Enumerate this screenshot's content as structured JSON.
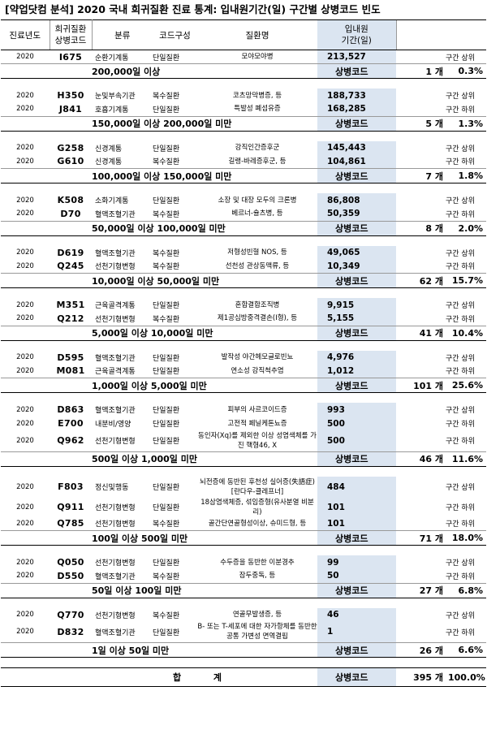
{
  "title": "[약업닷컴 분석] 2020 국내 희귀질환 진료 통계: 입내원기간(일) 구간별 상병코드 빈도",
  "header": {
    "year": "진료년도",
    "code_line1": "희귀질환",
    "code_line2": "상병코드",
    "category": "분류",
    "composition": "코드구성",
    "disease": "질환명",
    "days_line1": "입내원",
    "days_line2": "기간(일)"
  },
  "groups": [
    {
      "rows": [
        {
          "year": "2020",
          "code": "I675",
          "category": "순환기계통",
          "composition": "단일질환",
          "disease": "모야모야병",
          "days": "213,527",
          "position": "구간 상위"
        }
      ],
      "summary": {
        "range": "200,000일 이상",
        "label": "상병코드",
        "count": "1 개",
        "pct": "0.3%"
      }
    },
    {
      "rows": [
        {
          "year": "2020",
          "code": "H350",
          "category": "눈및부속기관",
          "composition": "복수질환",
          "disease": "코츠망막병증, 등",
          "days": "188,733",
          "position": "구간 상위"
        },
        {
          "year": "2020",
          "code": "J841",
          "category": "호흡기계통",
          "composition": "단일질환",
          "disease": "특발성 폐섬유증",
          "days": "168,285",
          "position": "구간 하위"
        }
      ],
      "summary": {
        "range": "150,000일 이상 200,000일 미만",
        "label": "상병코드",
        "count": "5 개",
        "pct": "1.3%"
      }
    },
    {
      "rows": [
        {
          "year": "2020",
          "code": "G258",
          "category": "신경계통",
          "composition": "단일질환",
          "disease": "강직인간증후군",
          "days": "145,443",
          "position": "구간 상위"
        },
        {
          "year": "2020",
          "code": "G610",
          "category": "신경계통",
          "composition": "복수질환",
          "disease": "길랭-바레증후군, 등",
          "days": "104,861",
          "position": "구간 하위"
        }
      ],
      "summary": {
        "range": "100,000일 이상 150,000일 미만",
        "label": "상병코드",
        "count": "7 개",
        "pct": "1.8%"
      }
    },
    {
      "rows": [
        {
          "year": "2020",
          "code": "K508",
          "category": "소화기계통",
          "composition": "단일질환",
          "disease": "소장 및 대장 모두의 크론병",
          "days": "86,808",
          "position": "구간 상위"
        },
        {
          "year": "2020",
          "code": "D70",
          "category": "혈액조혈기관",
          "composition": "복수질환",
          "disease": "베르너-슐츠병, 등",
          "days": "50,359",
          "position": "구간 하위"
        }
      ],
      "summary": {
        "range": "50,000일 이상 100,000일 미만",
        "label": "상병코드",
        "count": "8 개",
        "pct": "2.0%"
      }
    },
    {
      "rows": [
        {
          "year": "2020",
          "code": "D619",
          "category": "혈액조혈기관",
          "composition": "복수질환",
          "disease": "저형성빈혈 NOS, 등",
          "days": "49,065",
          "position": "구간 상위"
        },
        {
          "year": "2020",
          "code": "Q245",
          "category": "선천기형변형",
          "composition": "복수질환",
          "disease": "선천성 관상동맥류, 등",
          "days": "10,349",
          "position": "구간 하위"
        }
      ],
      "summary": {
        "range": "10,000일 이상 50,000일 미만",
        "label": "상병코드",
        "count": "62 개",
        "pct": "15.7%"
      }
    },
    {
      "rows": [
        {
          "year": "2020",
          "code": "M351",
          "category": "근육골격계통",
          "composition": "단일질환",
          "disease": "혼합결합조직병",
          "days": "9,915",
          "position": "구간 상위"
        },
        {
          "year": "2020",
          "code": "Q212",
          "category": "선천기형변형",
          "composition": "복수질환",
          "disease": "제1공심방중격결손(I형), 등",
          "days": "5,155",
          "position": "구간 하위"
        }
      ],
      "summary": {
        "range": "5,000일 이상 10,000일 미만",
        "label": "상병코드",
        "count": "41 개",
        "pct": "10.4%"
      }
    },
    {
      "rows": [
        {
          "year": "2020",
          "code": "D595",
          "category": "혈액조혈기관",
          "composition": "단일질환",
          "disease": "발작성 야간헤모글로빈뇨",
          "days": "4,976",
          "position": "구간 상위"
        },
        {
          "year": "2020",
          "code": "M081",
          "category": "근육골격계통",
          "composition": "단일질환",
          "disease": "연소성 강직척추염",
          "days": "1,012",
          "position": "구간 하위"
        }
      ],
      "summary": {
        "range": "1,000일 이상 5,000일 미만",
        "label": "상병코드",
        "count": "101 개",
        "pct": "25.6%"
      }
    },
    {
      "rows": [
        {
          "year": "2020",
          "code": "D863",
          "category": "혈액조혈기관",
          "composition": "단일질환",
          "disease": "피부의 사르코이드증",
          "days": "993",
          "position": "구간 상위"
        },
        {
          "year": "2020",
          "code": "E700",
          "category": "내분비/영양",
          "composition": "단일질환",
          "disease": "고전적 페닐케톤뇨증",
          "days": "500",
          "position": "구간 하위"
        },
        {
          "year": "2020",
          "code": "Q962",
          "category": "선천기형변형",
          "composition": "단일질환",
          "disease": "동인자(Xq)를 제외한 이상 성염색체를 가진 핵형46, X",
          "days": "500",
          "position": "구간 하위"
        }
      ],
      "summary": {
        "range": "500일 이상 1,000일 미만",
        "label": "상병코드",
        "count": "46 개",
        "pct": "11.6%"
      }
    },
    {
      "rows": [
        {
          "year": "2020",
          "code": "F803",
          "category": "정신및행동",
          "composition": "단일질환",
          "disease": "뇌전증에 동반된 후천성 실어증(失語症)[란다우-클레프너]",
          "days": "484",
          "position": "구간 상위"
        },
        {
          "year": "2020",
          "code": "Q911",
          "category": "선천기형변형",
          "composition": "단일질환",
          "disease": "18삼염색체증, 섞임증형(유사분열 비분리)",
          "days": "101",
          "position": "구간 하위"
        },
        {
          "year": "2020",
          "code": "Q785",
          "category": "선천기형변형",
          "composition": "복수질환",
          "disease": "골간단연골형성이상, 슈미드형, 등",
          "days": "101",
          "position": "구간 하위"
        }
      ],
      "summary": {
        "range": "100일 이상 500일 미만",
        "label": "상병코드",
        "count": "71 개",
        "pct": "18.0%"
      }
    },
    {
      "rows": [
        {
          "year": "2020",
          "code": "Q050",
          "category": "선천기형변형",
          "composition": "단일질환",
          "disease": "수두증을 동반한 이분경추",
          "days": "99",
          "position": "구간 상위"
        },
        {
          "year": "2020",
          "code": "D550",
          "category": "혈액조혈기관",
          "composition": "복수질환",
          "disease": "잠두중독, 등",
          "days": "50",
          "position": "구간 하위"
        }
      ],
      "summary": {
        "range": "50일 이상 100일 미만",
        "label": "상병코드",
        "count": "27 개",
        "pct": "6.8%"
      }
    },
    {
      "rows": [
        {
          "year": "2020",
          "code": "Q770",
          "category": "선천기형변형",
          "composition": "복수질환",
          "disease": "연골무발생증, 등",
          "days": "46",
          "position": "구간 상위"
        },
        {
          "year": "2020",
          "code": "D832",
          "category": "혈액조혈기관",
          "composition": "단일질환",
          "disease": "B- 또는 T-세포에 대한 자가항체를 동반한 공통 가변성 면역결핍",
          "days": "1",
          "position": "구간 하위"
        }
      ],
      "summary": {
        "range": "1일 이상 50일 미만",
        "label": "상병코드",
        "count": "26 개",
        "pct": "6.6%"
      }
    }
  ],
  "total": {
    "label": "합 계",
    "code_label": "상병코드",
    "count": "395 개",
    "pct": "100.0%"
  },
  "colors": {
    "highlight": "#dbe5f1",
    "border": "#000000"
  }
}
